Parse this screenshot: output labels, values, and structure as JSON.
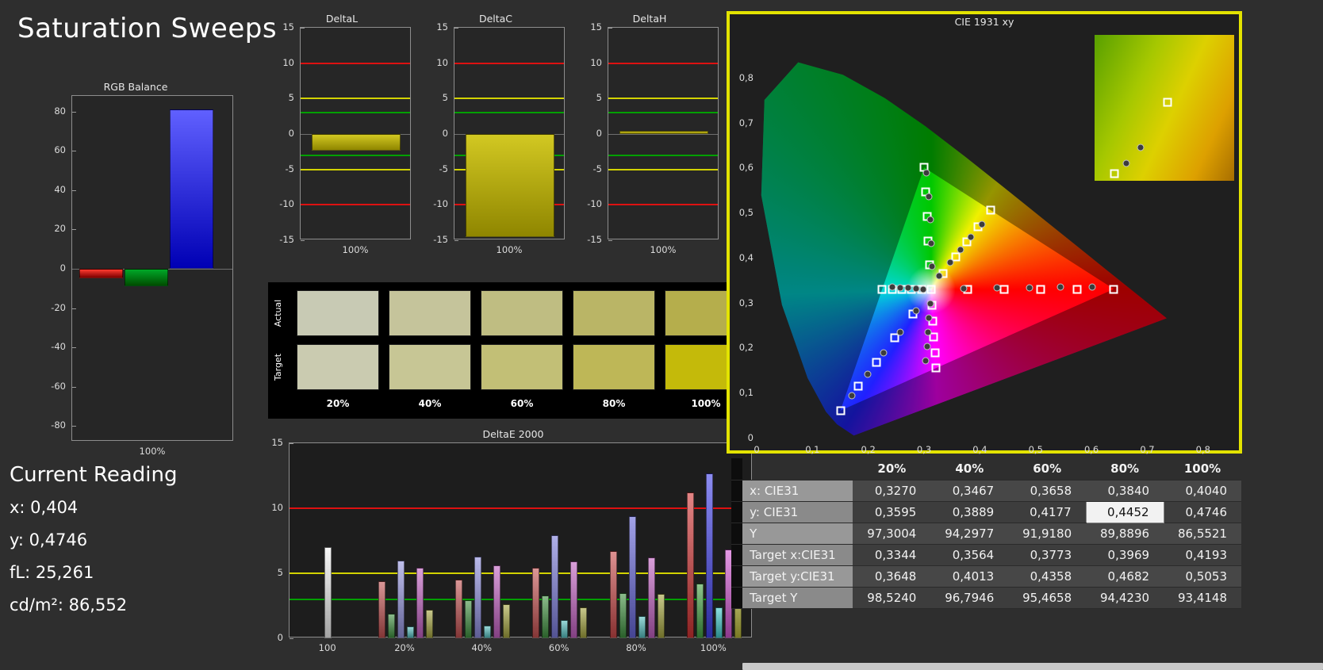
{
  "page": {
    "title": "Saturation Sweeps"
  },
  "current_reading": {
    "title": "Current Reading",
    "x": "x: 0,404",
    "y": "y: 0,4746",
    "fl": "fL: 25,261",
    "cdm2": "cd/m²: 86,552"
  },
  "chart_data": [
    {
      "id": "rgb_balance",
      "type": "bar",
      "title": "RGB Balance",
      "categories": [
        "Red",
        "Green",
        "Blue"
      ],
      "values": [
        -5,
        -9,
        81
      ],
      "colors": [
        [
          "#ff3b30",
          "#7c0000"
        ],
        [
          "#00a828",
          "#004d00"
        ],
        [
          "#6060ff",
          "#0000b4"
        ]
      ],
      "ylim": [
        -88,
        88
      ],
      "yticks": [
        80,
        60,
        40,
        20,
        0,
        -20,
        -40,
        -60,
        -80
      ],
      "xlabel": "100%"
    },
    {
      "id": "deltaL",
      "type": "bar",
      "title": "DeltaL",
      "categories": [
        "100%"
      ],
      "values": [
        -2.3
      ],
      "bar_colors": [
        "#d2c822",
        "#8f8600"
      ],
      "ylim": [
        -15,
        15
      ],
      "yticks": [
        15,
        10,
        5,
        0,
        -5,
        -10,
        -15
      ],
      "ref_lines": [
        {
          "y": 10,
          "color": "#dd1111"
        },
        {
          "y": 5,
          "color": "#d2d200"
        },
        {
          "y": 3,
          "color": "#00a000"
        },
        {
          "y": -3,
          "color": "#00a000"
        },
        {
          "y": -5,
          "color": "#d2d200"
        },
        {
          "y": -10,
          "color": "#dd1111"
        }
      ],
      "xlabel": "100%"
    },
    {
      "id": "deltaC",
      "type": "bar",
      "title": "DeltaC",
      "categories": [
        "100%"
      ],
      "values": [
        -14.5
      ],
      "bar_colors": [
        "#d2c822",
        "#8f8600"
      ],
      "ylim": [
        -15,
        15
      ],
      "yticks": [
        15,
        10,
        5,
        0,
        -5,
        -10,
        -15
      ],
      "ref_lines": [
        {
          "y": 10,
          "color": "#dd1111"
        },
        {
          "y": 5,
          "color": "#d2d200"
        },
        {
          "y": 3,
          "color": "#00a000"
        },
        {
          "y": -3,
          "color": "#00a000"
        },
        {
          "y": -5,
          "color": "#d2d200"
        },
        {
          "y": -10,
          "color": "#dd1111"
        }
      ],
      "xlabel": "100%"
    },
    {
      "id": "deltaH",
      "type": "bar",
      "title": "DeltaH",
      "categories": [
        "100%"
      ],
      "values": [
        0.4
      ],
      "bar_colors": [
        "#d2c822",
        "#8f8600"
      ],
      "ylim": [
        -15,
        15
      ],
      "yticks": [
        15,
        10,
        5,
        0,
        -5,
        -10,
        -15
      ],
      "ref_lines": [
        {
          "y": 10,
          "color": "#dd1111"
        },
        {
          "y": 5,
          "color": "#d2d200"
        },
        {
          "y": 3,
          "color": "#00a000"
        },
        {
          "y": -3,
          "color": "#00a000"
        },
        {
          "y": -5,
          "color": "#d2d200"
        },
        {
          "y": -10,
          "color": "#dd1111"
        }
      ],
      "xlabel": "100%"
    },
    {
      "id": "swatches",
      "type": "table",
      "row_labels": [
        "Actual",
        "Target"
      ],
      "col_labels": [
        "20%",
        "40%",
        "60%",
        "80%",
        "100%"
      ],
      "actual": [
        "#c8cab4",
        "#c5c49b",
        "#bfbd82",
        "#bab566",
        "#b5ae4c"
      ],
      "target": [
        "#cacbb0",
        "#c7c695",
        "#c2bf76",
        "#beb757",
        "#c4ba0a"
      ]
    },
    {
      "id": "deltae2000",
      "type": "bar",
      "title": "DeltaE 2000",
      "ylim": [
        0,
        15
      ],
      "yticks": [
        15,
        10,
        5,
        0
      ],
      "ref_lines": [
        {
          "y": 10,
          "color": "#dd1111"
        },
        {
          "y": 5,
          "color": "#d2d200"
        },
        {
          "y": 3,
          "color": "#00a000"
        }
      ],
      "groups": [
        {
          "label": "100",
          "bars": [
            {
              "color": "#f0f0f0",
              "value": 7.0
            }
          ]
        },
        {
          "label": "20%",
          "bars": [
            {
              "color": "#c05050",
              "value": 4.4
            },
            {
              "color": "#3e8e3e",
              "value": 1.9
            },
            {
              "color": "#9393dd",
              "value": 6.0
            },
            {
              "color": "#54bdbd",
              "value": 0.9
            },
            {
              "color": "#c05fc0",
              "value": 5.4
            },
            {
              "color": "#a3a33e",
              "value": 2.2
            }
          ]
        },
        {
          "label": "40%",
          "bars": [
            {
              "color": "#c05050",
              "value": 4.5
            },
            {
              "color": "#3e8e3e",
              "value": 2.9
            },
            {
              "color": "#8b8bdb",
              "value": 6.3
            },
            {
              "color": "#54bdbd",
              "value": 1.0
            },
            {
              "color": "#c05fc0",
              "value": 5.6
            },
            {
              "color": "#a3a33e",
              "value": 2.6
            }
          ]
        },
        {
          "label": "60%",
          "bars": [
            {
              "color": "#c35050",
              "value": 5.4
            },
            {
              "color": "#3e8e3e",
              "value": 3.3
            },
            {
              "color": "#7b7bd9",
              "value": 7.9
            },
            {
              "color": "#54bdbd",
              "value": 1.4
            },
            {
              "color": "#c05fc0",
              "value": 5.9
            },
            {
              "color": "#a3a33e",
              "value": 2.4
            }
          ]
        },
        {
          "label": "80%",
          "bars": [
            {
              "color": "#c84848",
              "value": 6.7
            },
            {
              "color": "#3e8e3e",
              "value": 3.5
            },
            {
              "color": "#6565d8",
              "value": 9.4
            },
            {
              "color": "#54bdbd",
              "value": 1.7
            },
            {
              "color": "#c05fc0",
              "value": 6.2
            },
            {
              "color": "#a3a33e",
              "value": 3.4
            }
          ]
        },
        {
          "label": "100%",
          "bars": [
            {
              "color": "#d03434",
              "value": 11.2
            },
            {
              "color": "#42a042",
              "value": 4.2
            },
            {
              "color": "#4040e8",
              "value": 12.7
            },
            {
              "color": "#3ecaca",
              "value": 2.4
            },
            {
              "color": "#d055d0",
              "value": 6.8
            },
            {
              "color": "#b3b335",
              "value": 4.6
            }
          ]
        }
      ]
    },
    {
      "id": "cie",
      "type": "scatter",
      "title": "CIE 1931 xy",
      "xlim": [
        0,
        0.85
      ],
      "ylim": [
        0,
        0.87
      ],
      "ticks": {
        "values": [
          0,
          0.1,
          0.2,
          0.3,
          0.4,
          0.5,
          0.6,
          0.7,
          0.8
        ],
        "labels": [
          "0",
          "0,1",
          "0,2",
          "0,3",
          "0,4",
          "0,5",
          "0,6",
          "0,7",
          "0,8"
        ]
      },
      "white_point": [
        0.3127,
        0.329
      ],
      "gamut_triangle": [
        [
          0.64,
          0.33
        ],
        [
          0.3,
          0.6
        ],
        [
          0.15,
          0.06
        ]
      ],
      "sweeps": [
        {
          "name": "red",
          "targets": [
            [
              0.3782,
              0.3292
            ],
            [
              0.4436,
              0.3294
            ],
            [
              0.5091,
              0.3296
            ],
            [
              0.5745,
              0.3298
            ],
            [
              0.64,
              0.33
            ]
          ],
          "measured": [
            [
              0.371,
              0.331
            ],
            [
              0.43,
              0.332
            ],
            [
              0.489,
              0.333
            ],
            [
              0.545,
              0.334
            ],
            [
              0.601,
              0.334
            ]
          ]
        },
        {
          "name": "green",
          "targets": [
            [
              0.3102,
              0.3832
            ],
            [
              0.3076,
              0.4374
            ],
            [
              0.3051,
              0.4916
            ],
            [
              0.3025,
              0.5458
            ],
            [
              0.3,
              0.6
            ]
          ],
          "measured": [
            [
              0.3135,
              0.38
            ],
            [
              0.3125,
              0.432
            ],
            [
              0.3115,
              0.484
            ],
            [
              0.309,
              0.536
            ],
            [
              0.304,
              0.588
            ]
          ]
        },
        {
          "name": "blue",
          "targets": [
            [
              0.2802,
              0.2752
            ],
            [
              0.2476,
              0.2214
            ],
            [
              0.2151,
              0.1676
            ],
            [
              0.1825,
              0.1138
            ],
            [
              0.15,
              0.06
            ]
          ],
          "measured": [
            [
              0.286,
              0.282
            ],
            [
              0.257,
              0.235
            ],
            [
              0.228,
              0.188
            ],
            [
              0.199,
              0.141
            ],
            [
              0.17,
              0.094
            ]
          ]
        },
        {
          "name": "yellow",
          "targets": [
            [
              0.3344,
              0.3648
            ],
            [
              0.3564,
              0.4013
            ],
            [
              0.3773,
              0.4358
            ],
            [
              0.3969,
              0.4682
            ],
            [
              0.4193,
              0.5053
            ]
          ],
          "measured": [
            [
              0.327,
              0.3595
            ],
            [
              0.3467,
              0.3889
            ],
            [
              0.3658,
              0.4177
            ],
            [
              0.384,
              0.4452
            ],
            [
              0.404,
              0.4746
            ]
          ]
        },
        {
          "name": "cyan",
          "targets": [
            [
              0.2952,
              0.3289
            ],
            [
              0.2776,
              0.3288
            ],
            [
              0.2601,
              0.3288
            ],
            [
              0.2425,
              0.3287
            ],
            [
              0.225,
              0.3287
            ]
          ],
          "measured": [
            [
              0.299,
              0.33
            ],
            [
              0.285,
              0.331
            ],
            [
              0.271,
              0.332
            ],
            [
              0.257,
              0.333
            ],
            [
              0.243,
              0.334
            ]
          ]
        },
        {
          "name": "magenta",
          "targets": [
            [
              0.3143,
              0.294
            ],
            [
              0.316,
              0.2591
            ],
            [
              0.3176,
              0.2241
            ],
            [
              0.3193,
              0.1892
            ],
            [
              0.3209,
              0.1542
            ]
          ],
          "measured": [
            [
              0.311,
              0.298
            ],
            [
              0.309,
              0.266
            ],
            [
              0.307,
              0.234
            ],
            [
              0.305,
              0.202
            ],
            [
              0.303,
              0.17
            ]
          ]
        }
      ],
      "inset": {
        "squares": [
          [
            52,
            46
          ],
          [
            14,
            95
          ]
        ],
        "dots": [
          [
            33,
            77
          ],
          [
            23,
            88
          ]
        ]
      }
    }
  ],
  "table": {
    "columns": [
      "",
      "20%",
      "40%",
      "60%",
      "80%",
      "100%"
    ],
    "rows": [
      {
        "label": "x: CIE31",
        "values": [
          "0,3270",
          "0,3467",
          "0,3658",
          "0,3840",
          "0,4040"
        ]
      },
      {
        "label": "y: CIE31",
        "values": [
          "0,3595",
          "0,3889",
          "0,4177",
          "0,4452",
          "0,4746"
        ]
      },
      {
        "label": "Y",
        "values": [
          "97,3004",
          "94,2977",
          "91,9180",
          "89,8896",
          "86,5521"
        ]
      },
      {
        "label": "Target x:CIE31",
        "values": [
          "0,3344",
          "0,3564",
          "0,3773",
          "0,3969",
          "0,4193"
        ]
      },
      {
        "label": "Target y:CIE31",
        "values": [
          "0,3648",
          "0,4013",
          "0,4358",
          "0,4682",
          "0,5053"
        ]
      },
      {
        "label": "Target Y",
        "values": [
          "98,5240",
          "96,7946",
          "95,4658",
          "94,4230",
          "93,4148"
        ]
      }
    ],
    "highlight": {
      "row": 1,
      "col": 3
    }
  }
}
